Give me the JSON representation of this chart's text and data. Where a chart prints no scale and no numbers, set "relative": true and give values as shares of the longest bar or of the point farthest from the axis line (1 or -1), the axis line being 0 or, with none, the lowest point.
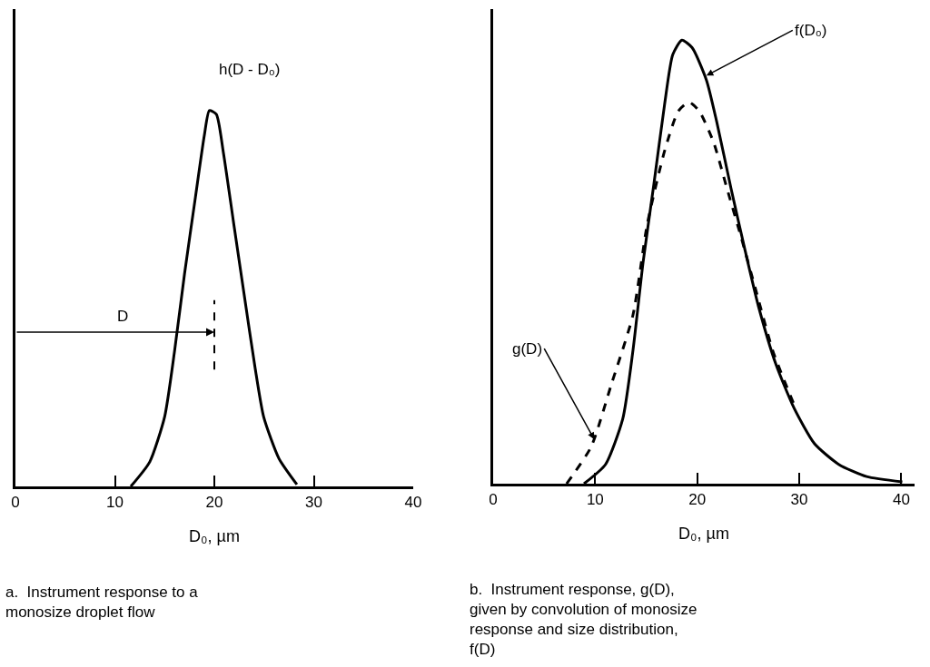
{
  "chart_data": [
    {
      "type": "line",
      "relative": true,
      "xlabel": "D₀, µm",
      "xlim": [
        0,
        40
      ],
      "xticks": [
        0,
        10,
        20,
        30,
        40
      ],
      "grid": false,
      "marker": "none",
      "line_style": "solid",
      "series": [
        {
          "color": "#000000",
          "x": [
            11.6,
            13.5,
            15.0,
            16.0,
            17.0,
            18.1,
            19.0,
            19.5,
            20.2,
            20.9,
            22.0,
            23.0,
            24.1,
            24.96,
            26.5,
            28.3
          ],
          "values": [
            0,
            0.065,
            0.185,
            0.36,
            0.565,
            0.77,
            0.935,
            1,
            0.99,
            0.89,
            0.69,
            0.51,
            0.315,
            0.185,
            0.074,
            0.005
          ]
        }
      ],
      "ref_lines": [
        {
          "axis": "x",
          "value": 20,
          "line_style": "dashed",
          "color": "#000000"
        }
      ],
      "annotations": [
        "h(D - D₀)",
        "D",
        "a.  Instrument response to a monosize droplet flow"
      ]
    },
    {
      "type": "line",
      "relative": true,
      "xlabel": "D₀, µm",
      "xlim": [
        0,
        41.3
      ],
      "xticks": [
        0,
        10,
        20,
        30,
        40
      ],
      "grid": false,
      "marker": "none",
      "series": [
        {
          "color": "#000000",
          "line_style": "solid",
          "x": [
            8.9,
            11.0,
            12.7,
            13.7,
            14.7,
            15.75,
            16.8,
            17.6,
            18.5,
            19.5,
            20.9,
            21.9,
            23.3,
            24.7,
            26.0,
            27.7,
            29.5,
            31.5,
            33.9,
            36.6,
            40.1
          ],
          "values": [
            0,
            0.043,
            0.146,
            0.3,
            0.5,
            0.675,
            0.855,
            0.967,
            1,
            0.983,
            0.91,
            0.817,
            0.667,
            0.525,
            0.4,
            0.27,
            0.17,
            0.09,
            0.043,
            0.016,
            0.004
          ]
        },
        {
          "color": "#000000",
          "line_style": "dashed",
          "x": [
            7.2,
            9.6,
            11.6,
            13.7,
            15.1,
            16.8,
            18.15,
            19.2,
            20.2,
            21.6,
            22.9,
            24.3,
            25.7,
            27.4,
            28.8,
            29.5
          ],
          "values": [
            0,
            0.083,
            0.225,
            0.38,
            0.585,
            0.75,
            0.84,
            0.86,
            0.84,
            0.77,
            0.667,
            0.556,
            0.44,
            0.3,
            0.217,
            0.178
          ]
        }
      ],
      "annotations": [
        {
          "text": "f(D₀)",
          "x": 20.9,
          "y": 0.92
        },
        {
          "text": "g(D)",
          "x": 9.9,
          "y": 0.1
        },
        "b.  Instrument response, g(D), given by convolution of monosize response and size distribution, f(D)"
      ]
    }
  ]
}
